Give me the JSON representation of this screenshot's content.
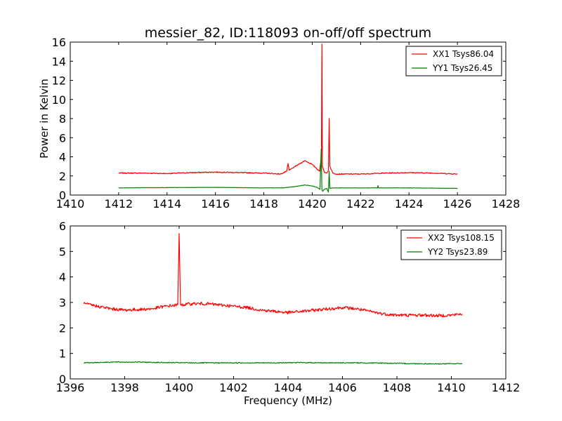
{
  "chart_data": [
    {
      "type": "line",
      "title": "messier_82, ID:118093 on-off/off spectrum",
      "xlabel": "",
      "ylabel": "Power in Kelvin",
      "xlim": [
        1410,
        1428
      ],
      "ylim": [
        0,
        16
      ],
      "xticks": [
        "1410",
        "1412",
        "1414",
        "1416",
        "1418",
        "1420",
        "1422",
        "1424",
        "1426",
        "1428"
      ],
      "yticks": [
        "0",
        "2",
        "4",
        "6",
        "8",
        "10",
        "12",
        "14",
        "16"
      ],
      "legend_position": "top-right",
      "series": [
        {
          "name": "XX1 Tsys86.04",
          "color": "#ff0000",
          "x": [
            1412.0,
            1413.0,
            1414.0,
            1415.0,
            1416.0,
            1417.0,
            1418.0,
            1418.7,
            1418.95,
            1419.0,
            1419.05,
            1419.3,
            1419.7,
            1420.0,
            1420.3,
            1420.38,
            1420.4,
            1420.42,
            1420.5,
            1420.6,
            1420.67,
            1420.7,
            1420.73,
            1420.85,
            1421.0,
            1422.0,
            1423.0,
            1424.0,
            1425.0,
            1426.0
          ],
          "y": [
            2.3,
            2.3,
            2.25,
            2.35,
            2.4,
            2.35,
            2.3,
            2.2,
            2.5,
            3.3,
            2.6,
            3.0,
            3.6,
            3.2,
            2.5,
            4.0,
            15.8,
            3.0,
            2.4,
            2.3,
            2.6,
            8.0,
            3.0,
            2.3,
            2.2,
            2.2,
            2.3,
            2.35,
            2.3,
            2.2
          ]
        },
        {
          "name": "YY1 Tsys26.45",
          "color": "#008000",
          "x": [
            1412.0,
            1414.0,
            1416.0,
            1418.0,
            1418.8,
            1419.3,
            1419.7,
            1420.0,
            1420.2,
            1420.32,
            1420.37,
            1420.4,
            1420.43,
            1420.5,
            1420.6,
            1420.67,
            1420.7,
            1420.73,
            1420.85,
            1421.5,
            1422.7,
            1422.72,
            1422.74,
            1424.0,
            1426.0
          ],
          "y": [
            0.75,
            0.78,
            0.8,
            0.75,
            0.75,
            0.9,
            1.05,
            0.95,
            0.8,
            0.6,
            4.8,
            0.6,
            0.4,
            0.6,
            0.7,
            0.3,
            2.5,
            0.7,
            0.75,
            0.75,
            0.75,
            1.0,
            0.75,
            0.75,
            0.7
          ]
        }
      ]
    },
    {
      "type": "line",
      "title": "",
      "xlabel": "Frequency (MHz)",
      "ylabel": "",
      "xlim": [
        1396,
        1412
      ],
      "ylim": [
        0,
        6
      ],
      "xticks": [
        "1396",
        "1398",
        "1400",
        "1402",
        "1404",
        "1406",
        "1408",
        "1410",
        "1412"
      ],
      "yticks": [
        "0",
        "1",
        "2",
        "3",
        "4",
        "5",
        "6"
      ],
      "legend_position": "top-right",
      "series": [
        {
          "name": "XX2 Tsys108.15",
          "color": "#ff0000",
          "x": [
            1396.5,
            1397.0,
            1397.5,
            1398.0,
            1398.5,
            1399.0,
            1399.5,
            1399.95,
            1400.0,
            1400.05,
            1400.5,
            1401.0,
            1401.5,
            1402.0,
            1402.5,
            1403.0,
            1403.5,
            1404.0,
            1404.5,
            1405.0,
            1405.5,
            1406.0,
            1406.5,
            1407.0,
            1407.5,
            1408.0,
            1408.5,
            1409.0,
            1409.5,
            1410.0,
            1410.4
          ],
          "y": [
            2.95,
            2.85,
            2.75,
            2.7,
            2.72,
            2.75,
            2.85,
            2.9,
            5.7,
            2.9,
            2.95,
            2.95,
            2.9,
            2.85,
            2.8,
            2.7,
            2.65,
            2.6,
            2.65,
            2.7,
            2.75,
            2.8,
            2.75,
            2.65,
            2.55,
            2.5,
            2.5,
            2.5,
            2.48,
            2.5,
            2.55
          ]
        },
        {
          "name": "YY2 Tsys23.89",
          "color": "#008000",
          "x": [
            1396.5,
            1397.5,
            1398.5,
            1399.5,
            1400.5,
            1401.5,
            1402.5,
            1403.5,
            1404.5,
            1405.5,
            1406.5,
            1407.5,
            1408.5,
            1409.5,
            1410.4
          ],
          "y": [
            0.63,
            0.66,
            0.66,
            0.64,
            0.63,
            0.63,
            0.63,
            0.63,
            0.64,
            0.63,
            0.63,
            0.62,
            0.6,
            0.59,
            0.6
          ]
        }
      ]
    }
  ]
}
